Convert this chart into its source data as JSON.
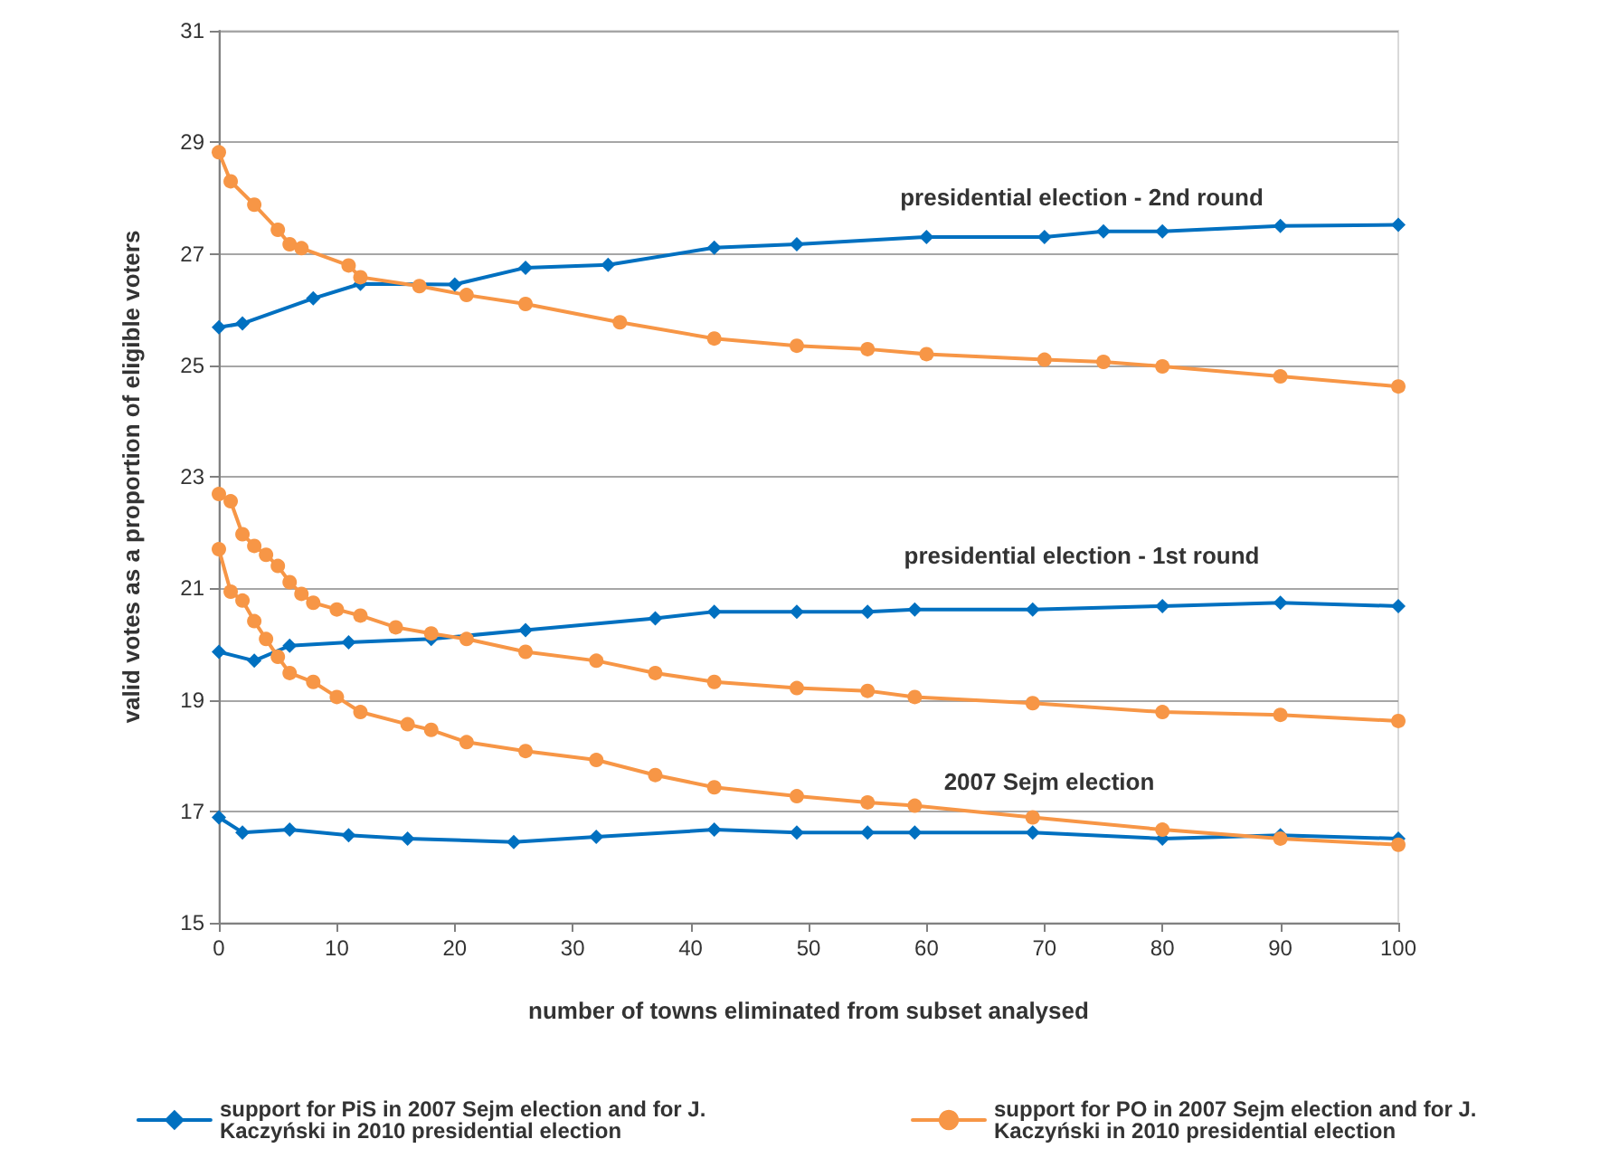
{
  "chart_data": {
    "type": "line",
    "xlabel": "number of towns eliminated from subset analysed",
    "ylabel": "valid votes as a proportion of eligible voters",
    "xlim": [
      0,
      100
    ],
    "xticks": [
      0,
      10,
      20,
      30,
      40,
      50,
      60,
      70,
      80,
      90,
      100
    ],
    "ylim": [
      15,
      31
    ],
    "yticks": [
      15,
      17,
      19,
      21,
      23,
      25,
      27,
      29,
      31
    ],
    "grid": "y",
    "legend": "bottom",
    "annotations": [
      "presidential election - 2nd round",
      "presidential election - 1st round",
      "2007 Sejm election"
    ],
    "series": [
      {
        "name": "support for PiS in 2007 Sejm election and for J. Kaczyński in 2010 presidential election",
        "color": "#0070c0",
        "marker": "diamond",
        "x": [
          0,
          2,
          6,
          11,
          16,
          25,
          32,
          42,
          49,
          55,
          59,
          69,
          80,
          90,
          100
        ],
        "values": [
          16.89,
          16.62,
          16.67,
          16.57,
          16.51,
          16.45,
          16.54,
          16.67,
          16.62,
          16.62,
          16.62,
          16.62,
          16.51,
          16.57,
          16.51
        ]
      },
      {
        "color": "#0070c0",
        "marker": "diamond",
        "x": [
          0,
          3,
          6,
          11,
          18,
          26,
          37,
          42,
          49,
          55,
          59,
          69,
          80,
          90,
          100
        ],
        "values": [
          19.86,
          19.7,
          19.97,
          20.03,
          20.09,
          20.25,
          20.46,
          20.58,
          20.58,
          20.58,
          20.62,
          20.62,
          20.68,
          20.74,
          20.68
        ]
      },
      {
        "color": "#0070c0",
        "marker": "diamond",
        "x": [
          0,
          2,
          8,
          12,
          20,
          26,
          33,
          42,
          49,
          60,
          70,
          75,
          80,
          90,
          100
        ],
        "values": [
          25.68,
          25.75,
          26.2,
          26.46,
          26.45,
          26.75,
          26.8,
          27.11,
          27.17,
          27.3,
          27.3,
          27.4,
          27.4,
          27.5,
          27.52
        ]
      },
      {
        "name": "support for PO in 2007 Sejm election and for J. Kaczyński in 2010 presidential election",
        "color": "#f79646",
        "marker": "circle",
        "x": [
          0,
          1,
          2,
          3,
          4,
          5,
          6,
          8,
          10,
          12,
          16,
          18,
          21,
          26,
          32,
          37,
          42,
          49,
          55,
          59,
          69,
          80,
          90,
          100
        ],
        "values": [
          21.7,
          20.94,
          20.78,
          20.41,
          20.09,
          19.77,
          19.48,
          19.32,
          19.05,
          18.78,
          18.56,
          18.46,
          18.24,
          18.08,
          17.92,
          17.65,
          17.43,
          17.27,
          17.16,
          17.1,
          16.89,
          16.67,
          16.51,
          16.4
        ]
      },
      {
        "color": "#f79646",
        "marker": "circle",
        "x": [
          0,
          1,
          2,
          3,
          4,
          5,
          6,
          7,
          8,
          10,
          12,
          15,
          18,
          21,
          26,
          32,
          37,
          42,
          49,
          55,
          59,
          69,
          80,
          90,
          100
        ],
        "values": [
          22.69,
          22.56,
          21.97,
          21.76,
          21.6,
          21.4,
          21.11,
          20.9,
          20.74,
          20.62,
          20.51,
          20.3,
          20.19,
          20.09,
          19.86,
          19.7,
          19.48,
          19.32,
          19.21,
          19.16,
          19.05,
          18.94,
          18.78,
          18.73,
          18.62
        ]
      },
      {
        "color": "#f79646",
        "marker": "circle",
        "x": [
          0,
          1,
          3,
          5,
          6,
          7,
          11,
          12,
          17,
          21,
          26,
          34,
          42,
          49,
          55,
          60,
          70,
          75,
          80,
          90,
          100
        ],
        "values": [
          28.82,
          28.3,
          27.88,
          27.43,
          27.17,
          27.1,
          26.79,
          26.58,
          26.42,
          26.26,
          26.1,
          25.77,
          25.48,
          25.35,
          25.29,
          25.2,
          25.1,
          25.06,
          24.98,
          24.8,
          24.62
        ]
      }
    ]
  }
}
